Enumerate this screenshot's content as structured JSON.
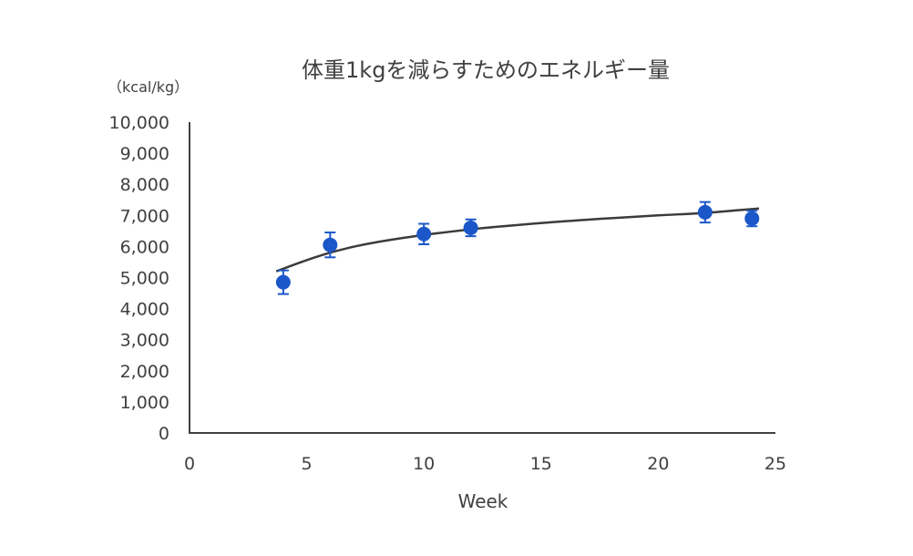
{
  "chart_data": {
    "type": "scatter",
    "title": "体重1kgを減らすためのエネルギー量",
    "unit_label": "（kcal/kg）",
    "xlabel": "Week",
    "ylabel": "",
    "xlim": [
      0,
      25
    ],
    "ylim": [
      0,
      10000
    ],
    "x_ticks": [
      0,
      5,
      10,
      15,
      20,
      25
    ],
    "x_tick_labels": [
      "0",
      "5",
      "10",
      "15",
      "20",
      "25"
    ],
    "y_ticks": [
      0,
      1000,
      2000,
      3000,
      4000,
      5000,
      6000,
      7000,
      8000,
      9000,
      10000
    ],
    "y_tick_labels": [
      "0",
      "1,000",
      "2,000",
      "3,000",
      "4,000",
      "5,000",
      "6,000",
      "7,000",
      "8,000",
      "9,000",
      "10,000"
    ],
    "grid": false,
    "series": [
      {
        "x": [
          4,
          6,
          10,
          12,
          22,
          24
        ],
        "y": [
          4850,
          6050,
          6400,
          6600,
          7100,
          6900
        ],
        "error": [
          380,
          400,
          330,
          270,
          330,
          250
        ]
      }
    ],
    "trend": {
      "x": [
        3.7,
        5,
        6,
        7,
        8,
        10,
        12,
        14,
        16,
        18,
        20,
        22,
        24.3
      ],
      "y": [
        5200,
        5560,
        5800,
        5990,
        6140,
        6370,
        6550,
        6690,
        6810,
        6910,
        7000,
        7080,
        7220
      ]
    },
    "colors": {
      "marker": "#1b57c9",
      "trend": "#3b3b3b",
      "axis": "#404040",
      "text": "#404040"
    }
  }
}
